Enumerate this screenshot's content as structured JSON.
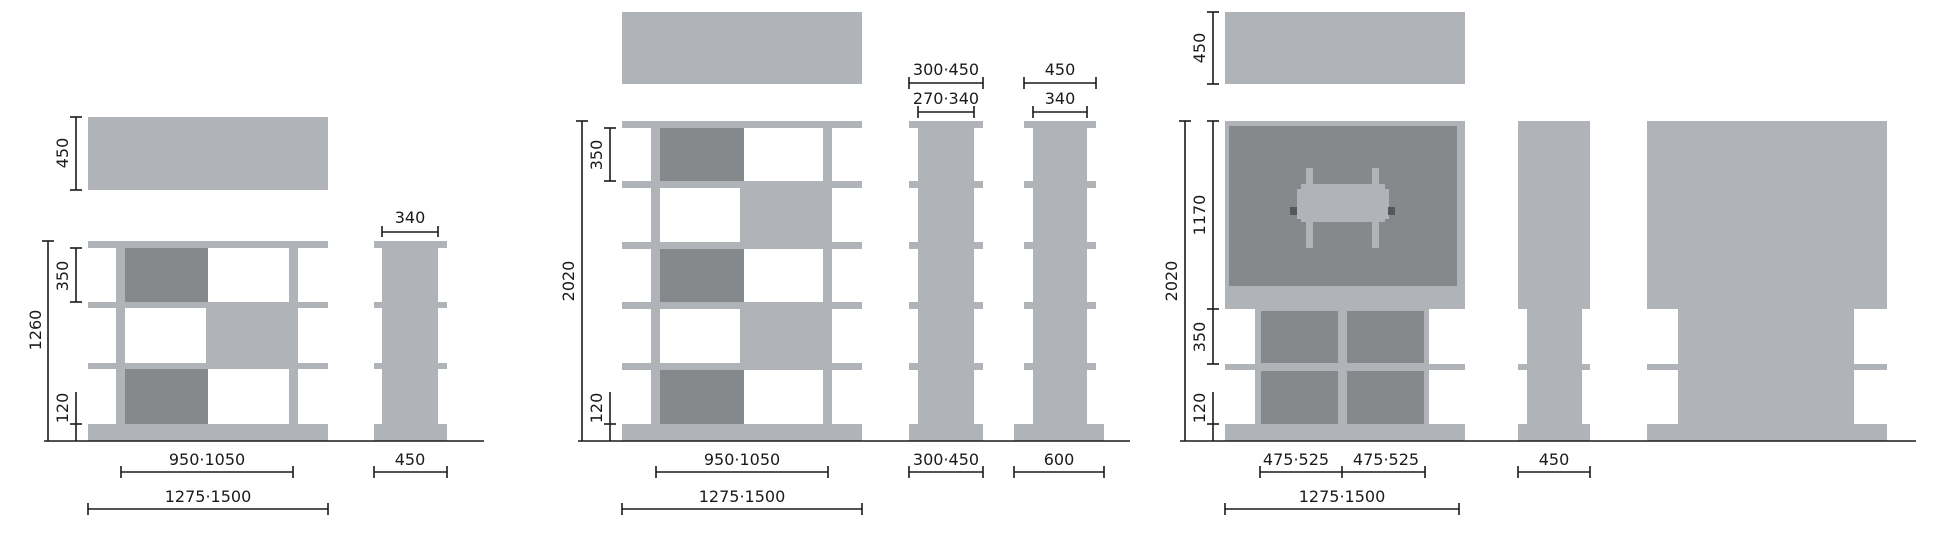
{
  "colors": {
    "light_gray": "#b0b3b7",
    "dark_gray": "#86898c",
    "line": "#1a1a1a",
    "background": "#ffffff"
  },
  "group1": {
    "top_dim_450": "450",
    "height_1260": "1260",
    "shelf_350": "350",
    "base_120": "120",
    "side_depth_340": "340",
    "side_depth_450": "450",
    "width_inner": "950·1050",
    "width_total": "1275·1500"
  },
  "group2": {
    "height_2020": "2020",
    "shelf_350": "350",
    "base_120": "120",
    "width_inner": "950·1050",
    "width_total": "1275·1500",
    "col_a_top1": "300·450",
    "col_a_top2": "270·340",
    "col_a_bottom": "300·450",
    "col_b_top1": "450",
    "col_b_top2": "340",
    "col_b_bottom": "600"
  },
  "group3": {
    "top_dim_450": "450",
    "height_2020": "2020",
    "height_1170": "1170",
    "shelf_350": "350",
    "base_120": "120",
    "width_left": "475·525",
    "width_right": "475·525",
    "width_total": "1275·1500",
    "side_depth_450": "450"
  }
}
